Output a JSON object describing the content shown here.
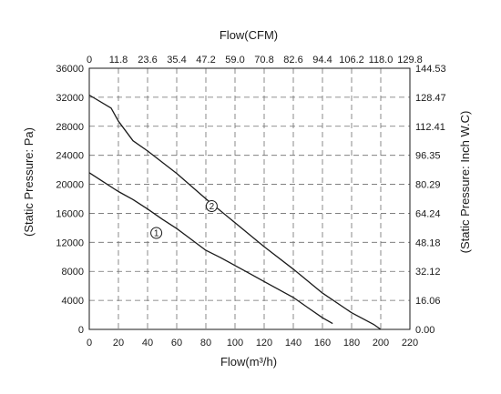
{
  "chart_data": {
    "type": "line",
    "title": "",
    "xlabel": "Flow(m³/h)",
    "x2label": "Flow(CFM)",
    "ylabel": "(Static Pressure: Pa)",
    "y2label": "(Static Pressure: Inch W.C)",
    "xlim": [
      0,
      220
    ],
    "ylim": [
      0,
      36000
    ],
    "x_ticks": [
      "0",
      "20",
      "40",
      "60",
      "80",
      "100",
      "120",
      "140",
      "160",
      "180",
      "200",
      "220"
    ],
    "y_ticks": [
      "0",
      "4000",
      "8000",
      "12000",
      "16000",
      "20000",
      "24000",
      "28000",
      "32000",
      "36000"
    ],
    "x2_ticks": [
      "0",
      "11.8",
      "23.6",
      "35.4",
      "47.2",
      "59.0",
      "70.8",
      "82.6",
      "94.4",
      "106.2",
      "118.0",
      "129.8"
    ],
    "y2_ticks": [
      "0.00",
      "16.06",
      "32.12",
      "48.18",
      "64.24",
      "80.29",
      "96.35",
      "112.41",
      "128.47",
      "144.53"
    ],
    "grid": true,
    "grid_style": "dashed",
    "series": [
      {
        "label": "1",
        "color": "#1a1a1a",
        "x": [
          0,
          10,
          20,
          30,
          40,
          50,
          60,
          70,
          80,
          90,
          100,
          110,
          120,
          130,
          140,
          150,
          160,
          167
        ],
        "y": [
          21600,
          20300,
          19000,
          17900,
          16600,
          15200,
          13900,
          12400,
          10900,
          9900,
          8800,
          7700,
          6600,
          5500,
          4400,
          3000,
          1600,
          800
        ]
      },
      {
        "label": "2",
        "color": "#1a1a1a",
        "x": [
          0,
          15,
          20,
          30,
          40,
          60,
          80,
          100,
          120,
          140,
          160,
          180,
          195,
          200
        ],
        "y": [
          32300,
          30500,
          28700,
          26000,
          24600,
          21500,
          18000,
          14700,
          11400,
          8300,
          5000,
          2300,
          700,
          0
        ]
      }
    ],
    "annotations": [
      {
        "text": "1",
        "series": 0,
        "x": 46,
        "y": 13300
      },
      {
        "text": "2",
        "series": 1,
        "x": 84,
        "y": 17000
      }
    ]
  }
}
